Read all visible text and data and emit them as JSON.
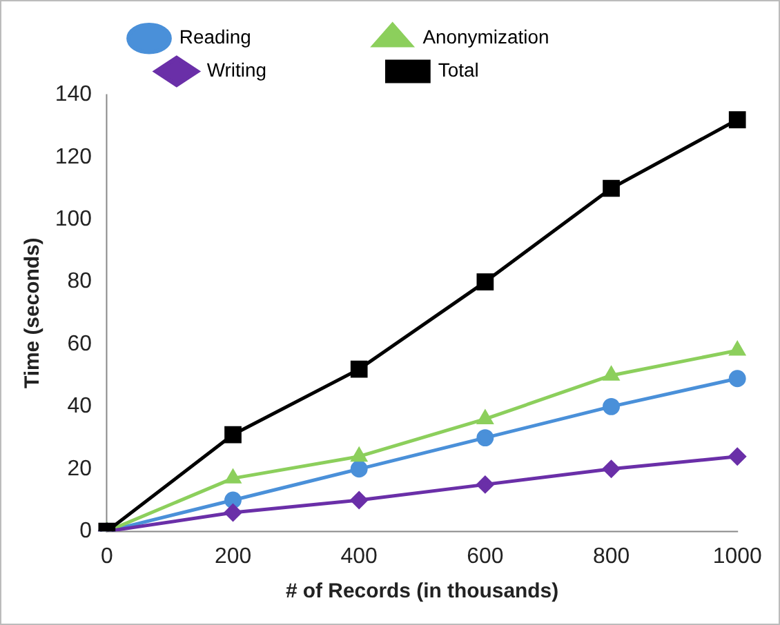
{
  "chart_data": {
    "type": "line",
    "xlabel": "# of Records (in thousands)",
    "ylabel": "Time (seconds)",
    "categories": [
      "0",
      "200",
      "400",
      "600",
      "800",
      "1000"
    ],
    "ylim": [
      0,
      140
    ],
    "yticks": [
      0,
      20,
      40,
      60,
      80,
      100,
      120,
      140
    ],
    "grid": false,
    "legend": "top",
    "series": [
      {
        "name": "Reading",
        "color": "#4a90d9",
        "marker": "circle",
        "values": [
          0,
          10,
          20,
          30,
          40,
          49
        ]
      },
      {
        "name": "Anonymization",
        "color": "#8ccf5c",
        "marker": "triangle",
        "values": [
          0,
          17,
          24,
          36,
          50,
          58
        ]
      },
      {
        "name": "Writing",
        "color": "#6a2fa8",
        "marker": "diamond",
        "values": [
          0,
          6,
          10,
          15,
          20,
          24
        ]
      },
      {
        "name": "Total",
        "color": "#000000",
        "marker": "square",
        "values": [
          0,
          31,
          52,
          80,
          110,
          132
        ]
      }
    ]
  }
}
